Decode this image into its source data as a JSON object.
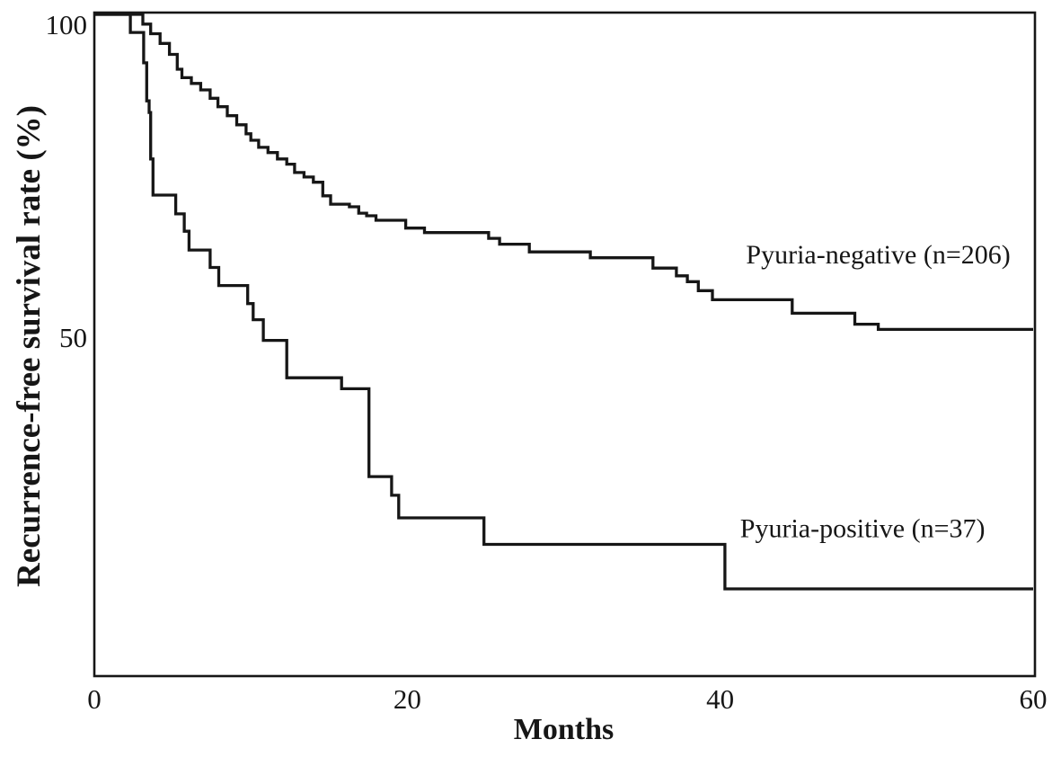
{
  "figure": {
    "background": "#ffffff",
    "ink_color": "#161616"
  },
  "chart_data": {
    "type": "line",
    "variant": "kaplan_meier_step",
    "title": "",
    "xlabel": "Months",
    "ylabel": "Recurrence-free survival rate (%)",
    "xlim": [
      0,
      60
    ],
    "ylim": [
      0,
      100
    ],
    "grid": false,
    "legend_position": "inline-annotations",
    "x_ticks": [
      {
        "value": 0,
        "label": "0"
      },
      {
        "value": 20,
        "label": "20"
      },
      {
        "value": 40,
        "label": "40"
      },
      {
        "value": 60,
        "label": "60"
      }
    ],
    "y_ticks": [
      {
        "value": 50,
        "label": "50"
      },
      {
        "value": 100,
        "label": "100"
      }
    ],
    "series": [
      {
        "name": "Pyuria-negative (n=206)",
        "n": 206,
        "annotation": {
          "text": "Pyuria-negative (n=206)",
          "x": 50.1,
          "y": 61.4
        },
        "steps": [
          [
            0,
            100
          ],
          [
            3.1,
            98.5
          ],
          [
            3.6,
            97.0
          ],
          [
            4.2,
            95.5
          ],
          [
            4.8,
            93.8
          ],
          [
            5.3,
            91.5
          ],
          [
            5.6,
            90.2
          ],
          [
            6.2,
            89.3
          ],
          [
            6.8,
            88.3
          ],
          [
            7.4,
            87.0
          ],
          [
            7.9,
            85.7
          ],
          [
            8.5,
            84.3
          ],
          [
            9.1,
            82.9
          ],
          [
            9.7,
            81.5
          ],
          [
            10.0,
            80.5
          ],
          [
            10.5,
            79.4
          ],
          [
            11.1,
            78.6
          ],
          [
            11.7,
            77.6
          ],
          [
            12.3,
            76.8
          ],
          [
            12.8,
            75.5
          ],
          [
            13.4,
            74.8
          ],
          [
            14.0,
            74.0
          ],
          [
            14.6,
            71.9
          ],
          [
            15.1,
            70.6
          ],
          [
            16.3,
            70.2
          ],
          [
            16.9,
            69.2
          ],
          [
            17.4,
            68.8
          ],
          [
            18.0,
            68.1
          ],
          [
            19.9,
            66.9
          ],
          [
            21.1,
            66.2
          ],
          [
            25.2,
            65.3
          ],
          [
            25.9,
            64.4
          ],
          [
            27.8,
            63.2
          ],
          [
            31.7,
            62.3
          ],
          [
            35.7,
            60.7
          ],
          [
            37.2,
            59.5
          ],
          [
            37.9,
            58.6
          ],
          [
            38.6,
            57.2
          ],
          [
            39.5,
            55.8
          ],
          [
            44.6,
            53.7
          ],
          [
            48.6,
            52.0
          ],
          [
            50.1,
            51.2
          ]
        ],
        "final_value": 51.2
      },
      {
        "name": "Pyuria-positive (n=37)",
        "n": 37,
        "annotation": {
          "text": "Pyuria-positive (n=37)",
          "x": 49.1,
          "y": 19.0
        },
        "steps": [
          [
            0,
            100
          ],
          [
            2.3,
            97.2
          ],
          [
            3.15,
            92.5
          ],
          [
            3.35,
            86.6
          ],
          [
            3.5,
            84.8
          ],
          [
            3.6,
            77.6
          ],
          [
            3.75,
            72.0
          ],
          [
            5.2,
            69.1
          ],
          [
            5.75,
            66.4
          ],
          [
            6.05,
            63.5
          ],
          [
            7.4,
            60.8
          ],
          [
            7.95,
            58.0
          ],
          [
            9.8,
            55.2
          ],
          [
            10.15,
            52.7
          ],
          [
            10.8,
            49.5
          ],
          [
            12.3,
            43.7
          ],
          [
            15.8,
            42.0
          ],
          [
            17.55,
            28.4
          ],
          [
            19.0,
            25.5
          ],
          [
            19.45,
            22.0
          ],
          [
            24.9,
            17.9
          ],
          [
            40.3,
            11.0
          ]
        ],
        "final_value": 11.0
      }
    ]
  }
}
